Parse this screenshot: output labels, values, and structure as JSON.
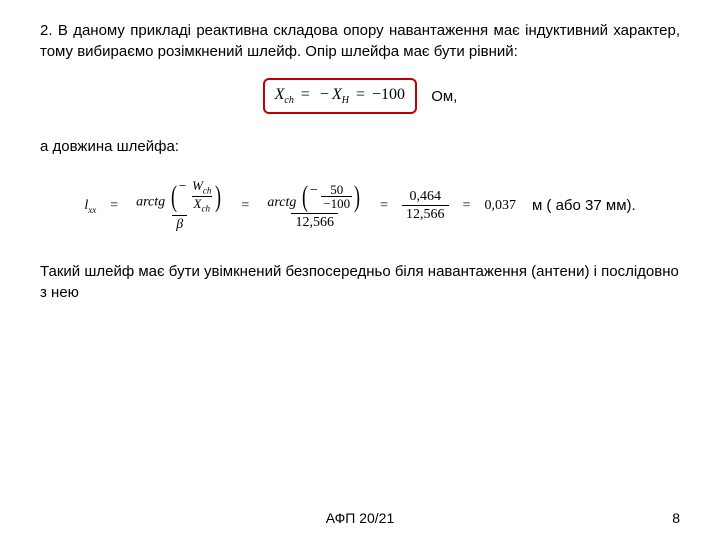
{
  "para1": "2. В даному прикладі реактивна складова опору навантаження має індуктивний характер, тому вибираємо розімкнений шлейф. Опір шлейфа має бути рівний:",
  "eq1": {
    "lhs_var": "X",
    "lhs_sub": "ch",
    "rhs1_op": "−",
    "rhs1_var": "X",
    "rhs1_sub": "H",
    "rhs2": "−100",
    "unit": "Ом,"
  },
  "para2": "а довжина шлейфа:",
  "formula": {
    "lvar": "l",
    "lsub": "xx",
    "arctg": "arctg",
    "minus": "−",
    "Wvar": "W",
    "Wsub": "ch",
    "Xvar": "X",
    "Xsub": "ch",
    "beta": "β",
    "n50": "50",
    "d100": "−100",
    "den2": "12,566",
    "num3": "0,464",
    "den3": "12,566",
    "val": "0,037",
    "tail": "м  ( або 37 мм)."
  },
  "para3": "Такий шлейф має бути увімкнений безпосередньо біля навантаження (антени) і послідовно з нею",
  "footer": "АФП 20/21",
  "pagenum": "8"
}
